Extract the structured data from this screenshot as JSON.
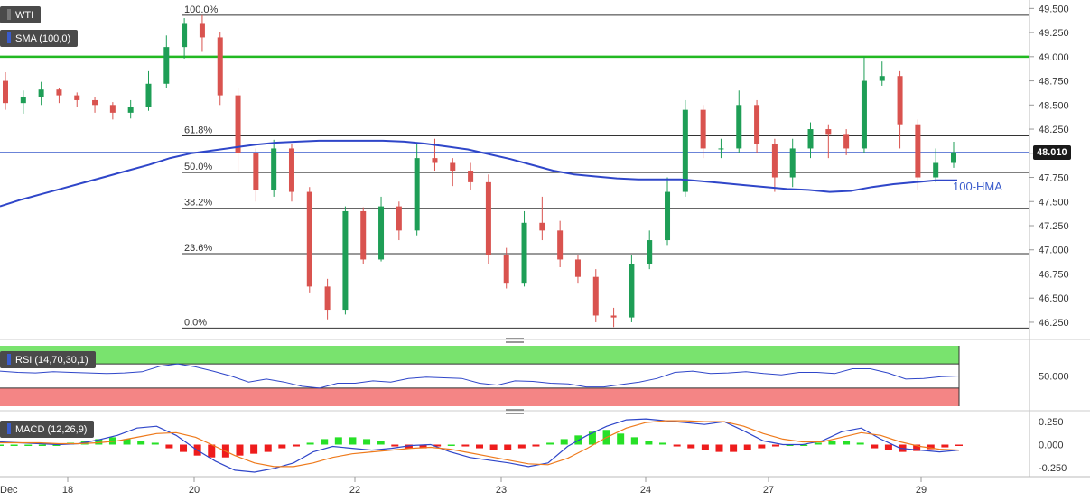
{
  "chart_data": [
    {
      "type": "candlestick",
      "legend": {
        "symbol": "WTI",
        "indicator": "SMA (100,0)"
      },
      "ylim": [
        46.1,
        49.55
      ],
      "y_ticks": [
        "49.500",
        "49.250",
        "49.000",
        "48.750",
        "48.500",
        "48.250",
        "48.000",
        "47.750",
        "47.500",
        "47.250",
        "47.000",
        "46.750",
        "46.500",
        "46.250"
      ],
      "y_tick_values": [
        49.5,
        49.25,
        49.0,
        48.75,
        48.5,
        48.25,
        48.0,
        47.75,
        47.5,
        47.25,
        47.0,
        46.75,
        46.5,
        46.25
      ],
      "x_ticks": [
        "Dec",
        "18",
        "20",
        "22",
        "23",
        "24",
        "27",
        "29"
      ],
      "last_price": "48.010",
      "last_price_value": 48.01,
      "resistance_level": 49.0,
      "fib_levels": [
        {
          "label": "100.0%",
          "value": 49.43
        },
        {
          "label": "61.8%",
          "value": 48.18
        },
        {
          "label": "50.0%",
          "value": 47.8
        },
        {
          "label": "38.2%",
          "value": 47.43
        },
        {
          "label": "23.6%",
          "value": 46.96
        },
        {
          "label": "0.0%",
          "value": 46.19
        }
      ],
      "hma_label": "100-HMA",
      "hma": [
        47.45,
        47.52,
        47.58,
        47.64,
        47.7,
        47.76,
        47.82,
        47.88,
        47.95,
        48.0,
        48.03,
        48.06,
        48.09,
        48.11,
        48.12,
        48.13,
        48.13,
        48.13,
        48.13,
        48.12,
        48.1,
        48.07,
        48.04,
        47.99,
        47.94,
        47.88,
        47.82,
        47.78,
        47.76,
        47.74,
        47.73,
        47.73,
        47.73,
        47.71,
        47.69,
        47.67,
        47.65,
        47.63,
        47.62,
        47.6,
        47.61,
        47.65,
        47.68,
        47.7,
        47.72,
        47.72
      ],
      "candles": [
        [
          48.75,
          48.52,
          48.84,
          48.45
        ],
        [
          48.52,
          48.58,
          48.65,
          48.41
        ],
        [
          48.58,
          48.66,
          48.74,
          48.5
        ],
        [
          48.66,
          48.6,
          48.68,
          48.52
        ],
        [
          48.6,
          48.55,
          48.63,
          48.48
        ],
        [
          48.55,
          48.5,
          48.58,
          48.42
        ],
        [
          48.5,
          48.42,
          48.53,
          48.35
        ],
        [
          48.42,
          48.48,
          48.55,
          48.36
        ],
        [
          48.48,
          48.72,
          48.85,
          48.44
        ],
        [
          48.72,
          49.1,
          49.22,
          48.68
        ],
        [
          49.1,
          49.34,
          49.4,
          48.98
        ],
        [
          49.34,
          49.2,
          49.43,
          49.05
        ],
        [
          49.2,
          48.6,
          49.26,
          48.5
        ],
        [
          48.6,
          48.0,
          48.68,
          47.8
        ],
        [
          48.0,
          47.62,
          48.05,
          47.5
        ],
        [
          47.62,
          48.05,
          48.14,
          47.55
        ],
        [
          48.05,
          47.6,
          48.1,
          47.5
        ],
        [
          47.6,
          46.62,
          47.65,
          46.55
        ],
        [
          46.62,
          46.38,
          46.7,
          46.28
        ],
        [
          46.38,
          47.4,
          47.45,
          46.33
        ],
        [
          47.4,
          46.9,
          47.44,
          46.85
        ],
        [
          46.9,
          47.45,
          47.55,
          46.88
        ],
        [
          47.45,
          47.2,
          47.5,
          47.1
        ],
        [
          47.2,
          47.95,
          48.1,
          47.15
        ],
        [
          47.95,
          47.9,
          48.15,
          47.82
        ],
        [
          47.9,
          47.82,
          47.95,
          47.66
        ],
        [
          47.82,
          47.7,
          47.9,
          47.62
        ],
        [
          47.7,
          46.95,
          47.78,
          46.85
        ],
        [
          46.95,
          46.65,
          47.02,
          46.6
        ],
        [
          46.65,
          47.28,
          47.4,
          46.62
        ],
        [
          47.28,
          47.2,
          47.55,
          47.1
        ],
        [
          47.2,
          46.9,
          47.3,
          46.82
        ],
        [
          46.9,
          46.72,
          46.95,
          46.65
        ],
        [
          46.72,
          46.32,
          46.8,
          46.25
        ],
        [
          46.32,
          46.3,
          46.4,
          46.2
        ],
        [
          46.3,
          46.85,
          46.95,
          46.25
        ],
        [
          46.85,
          47.1,
          47.2,
          46.8
        ],
        [
          47.1,
          47.6,
          47.75,
          47.05
        ],
        [
          47.6,
          48.45,
          48.55,
          47.55
        ],
        [
          48.45,
          48.05,
          48.5,
          47.95
        ],
        [
          48.05,
          48.05,
          48.15,
          47.95
        ],
        [
          48.05,
          48.5,
          48.65,
          48.0
        ],
        [
          48.5,
          48.1,
          48.55,
          48.0
        ],
        [
          48.1,
          47.75,
          48.15,
          47.6
        ],
        [
          47.75,
          48.05,
          48.15,
          47.65
        ],
        [
          48.05,
          48.25,
          48.32,
          47.95
        ],
        [
          48.25,
          48.2,
          48.3,
          47.95
        ],
        [
          48.2,
          48.05,
          48.25,
          47.98
        ],
        [
          48.05,
          48.75,
          49.0,
          48.0
        ],
        [
          48.75,
          48.8,
          48.95,
          48.7
        ],
        [
          48.8,
          48.3,
          48.85,
          48.05
        ],
        [
          48.3,
          47.75,
          48.35,
          47.62
        ],
        [
          47.75,
          47.9,
          48.05,
          47.7
        ],
        [
          47.9,
          48.01,
          48.12,
          47.85
        ]
      ]
    },
    {
      "type": "line",
      "legend": "RSI (14,70,30,1)",
      "y_ticks": [
        "50.000"
      ],
      "y_tick_values": [
        50
      ],
      "ylim": [
        0,
        100
      ],
      "overbought": 70,
      "oversold": 30,
      "values": [
        58,
        56,
        55,
        57,
        56,
        55,
        54,
        55,
        57,
        66,
        70,
        65,
        58,
        50,
        40,
        45,
        40,
        33,
        30,
        38,
        38,
        42,
        40,
        46,
        48,
        47,
        46,
        38,
        35,
        42,
        41,
        38,
        37,
        32,
        32,
        36,
        40,
        46,
        56,
        58,
        54,
        55,
        57,
        54,
        52,
        56,
        56,
        54,
        62,
        62,
        55,
        45,
        46,
        49,
        50
      ]
    },
    {
      "type": "macd",
      "legend": "MACD (12,26,9)",
      "y_ticks": [
        "0.250",
        "0.000",
        "-0.250"
      ],
      "y_tick_values": [
        0.25,
        0.0,
        -0.25
      ],
      "ylim": [
        -0.33,
        0.33
      ],
      "histogram": [
        0.0,
        0.0,
        0.0,
        0.0,
        0.0,
        0.02,
        0.04,
        0.06,
        0.08,
        0.06,
        0.04,
        0.02,
        -0.04,
        -0.08,
        -0.12,
        -0.14,
        -0.14,
        -0.12,
        -0.1,
        -0.08,
        -0.04,
        -0.02,
        0.02,
        0.06,
        0.08,
        0.08,
        0.06,
        0.04,
        -0.02,
        -0.04,
        -0.04,
        -0.02,
        0.0,
        -0.02,
        -0.04,
        -0.06,
        -0.06,
        -0.04,
        -0.02,
        0.02,
        0.06,
        0.1,
        0.14,
        0.16,
        0.12,
        0.08,
        0.04,
        0.02,
        -0.02,
        -0.04,
        -0.06,
        -0.08,
        -0.08,
        -0.06,
        -0.04,
        -0.02,
        0.0,
        0.0,
        0.02,
        0.04,
        0.04,
        0.02,
        -0.04,
        -0.06,
        -0.08,
        -0.07,
        -0.05,
        -0.03,
        -0.01
      ],
      "macd": [
        0.03,
        0.02,
        0.01,
        0.0,
        0.01,
        0.05,
        0.1,
        0.18,
        0.2,
        0.1,
        -0.05,
        -0.18,
        -0.28,
        -0.3,
        -0.26,
        -0.2,
        -0.08,
        -0.02,
        -0.04,
        -0.06,
        -0.04,
        -0.01,
        0.0,
        -0.08,
        -0.14,
        -0.17,
        -0.2,
        -0.24,
        -0.2,
        -0.02,
        0.1,
        0.2,
        0.27,
        0.28,
        0.26,
        0.24,
        0.22,
        0.25,
        0.15,
        0.04,
        0.0,
        0.0,
        0.04,
        0.14,
        0.18,
        0.06,
        -0.04,
        -0.06,
        -0.08,
        -0.06
      ],
      "signal": [
        0.02,
        0.02,
        0.02,
        0.01,
        0.01,
        0.02,
        0.04,
        0.08,
        0.12,
        0.13,
        0.08,
        -0.02,
        -0.12,
        -0.2,
        -0.24,
        -0.24,
        -0.2,
        -0.14,
        -0.1,
        -0.08,
        -0.06,
        -0.04,
        -0.03,
        -0.05,
        -0.09,
        -0.13,
        -0.17,
        -0.21,
        -0.22,
        -0.15,
        -0.04,
        0.08,
        0.18,
        0.24,
        0.26,
        0.26,
        0.25,
        0.25,
        0.2,
        0.12,
        0.06,
        0.03,
        0.03,
        0.08,
        0.13,
        0.1,
        0.03,
        -0.02,
        -0.05,
        -0.06
      ]
    }
  ]
}
